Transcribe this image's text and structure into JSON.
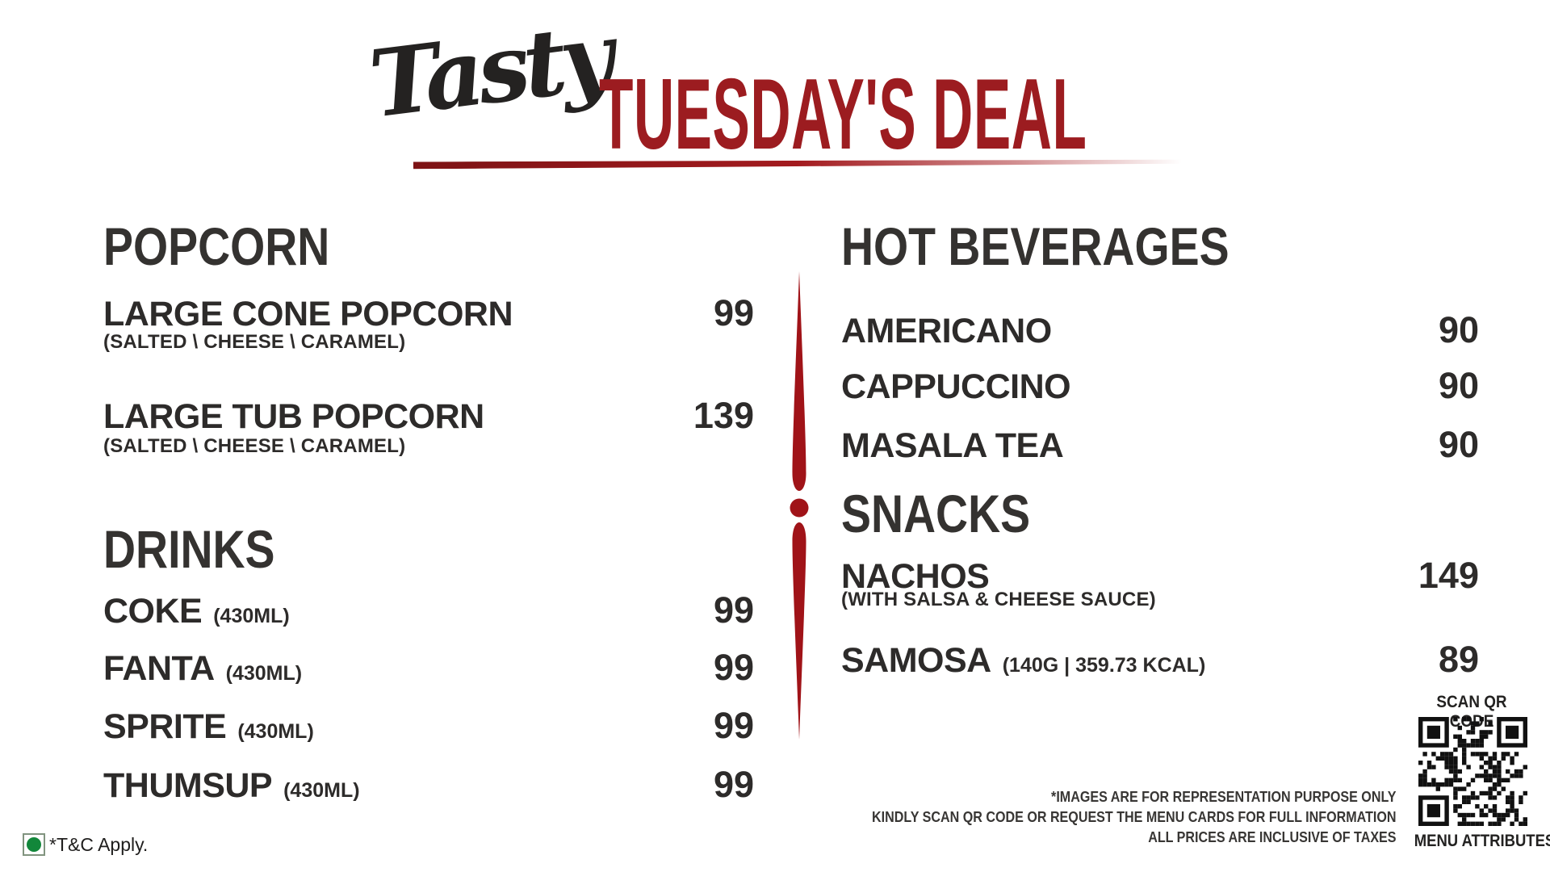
{
  "title": {
    "script": "Tasty",
    "main": "TUESDAY'S DEAL"
  },
  "colors": {
    "accent_red": "#9c1c20",
    "divider_red": "#a01318",
    "text_dark": "#2d2b2a",
    "veg_green": "#12873a"
  },
  "menu": {
    "popcorn": {
      "heading": "POPCORN",
      "items": [
        {
          "name": "LARGE CONE POPCORN",
          "desc": "(SALTED \\ CHEESE \\ CARAMEL)",
          "price": "99"
        },
        {
          "name": "LARGE TUB POPCORN",
          "desc": "(SALTED \\ CHEESE \\ CARAMEL)",
          "price": "139"
        }
      ]
    },
    "drinks": {
      "heading": "DRINKS",
      "items": [
        {
          "name": "COKE",
          "size": "(430ML)",
          "price": "99"
        },
        {
          "name": "FANTA",
          "size": "(430ML)",
          "price": "99"
        },
        {
          "name": "SPRITE",
          "size": "(430ML)",
          "price": "99"
        },
        {
          "name": "THUMSUP",
          "size": "(430ML)",
          "price": "99"
        }
      ]
    },
    "hot_beverages": {
      "heading": "HOT BEVERAGES",
      "items": [
        {
          "name": "AMERICANO",
          "price": "90"
        },
        {
          "name": "CAPPUCCINO",
          "price": "90"
        },
        {
          "name": "MASALA TEA",
          "price": "90"
        }
      ]
    },
    "snacks": {
      "heading": "SNACKS",
      "items": [
        {
          "name": "NACHOS",
          "desc": "(WITH SALSA & CHEESE SAUCE)",
          "price": "149"
        },
        {
          "name": "SAMOSA",
          "size": "(140G | 359.73 KCAL)",
          "price": "89"
        }
      ]
    }
  },
  "footer": {
    "tnc": "*T&C Apply.",
    "disclaimer": [
      "*IMAGES ARE FOR REPRESENTATION PURPOSE ONLY",
      "KINDLY SCAN QR CODE OR REQUEST THE MENU CARDS FOR FULL INFORMATION",
      "ALL PRICES ARE INCLUSIVE OF TAXES"
    ],
    "qr_label": "SCAN QR CODE",
    "qr_caption": "MENU ATTRIBUTES"
  }
}
